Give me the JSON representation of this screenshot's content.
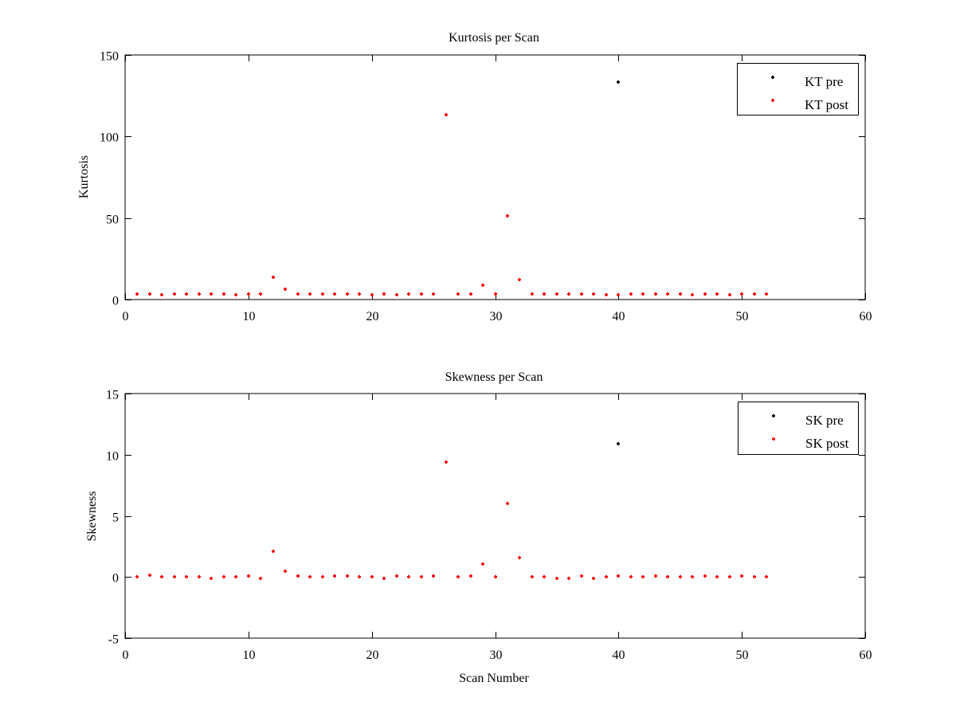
{
  "chart_data": [
    {
      "type": "scatter",
      "title": "Kurtosis per Scan",
      "xlabel": "",
      "ylabel": "Kurtosis",
      "xlim": [
        0,
        60
      ],
      "ylim": [
        0,
        150
      ],
      "xticks": [
        0,
        10,
        20,
        30,
        40,
        50,
        60
      ],
      "yticks": [
        0,
        50,
        100,
        150
      ],
      "grid": false,
      "legend_position": "top-right",
      "series": [
        {
          "name": "KT pre",
          "color": "#000000",
          "x": [
            1,
            2,
            3,
            4,
            5,
            6,
            7,
            8,
            9,
            10,
            11,
            12,
            13,
            14,
            15,
            16,
            17,
            18,
            19,
            20,
            21,
            22,
            23,
            24,
            25,
            26,
            27,
            28,
            29,
            30,
            31,
            32,
            33,
            34,
            35,
            36,
            37,
            38,
            39,
            40,
            41,
            42,
            43,
            44,
            45,
            46,
            47,
            48,
            49,
            50,
            51,
            52
          ],
          "y": [
            3.5,
            3.5,
            3.0,
            3.5,
            3.5,
            3.5,
            3.5,
            3.5,
            3.0,
            3.5,
            3.5,
            13.5,
            6.2,
            3.5,
            3.5,
            3.5,
            3.5,
            3.5,
            3.5,
            3.0,
            3.5,
            3.0,
            3.5,
            3.5,
            3.5,
            113.5,
            3.5,
            3.5,
            8.6,
            3.5,
            51.3,
            12.1,
            3.5,
            3.5,
            3.5,
            3.5,
            3.5,
            3.5,
            3.0,
            133.4,
            3.5,
            3.5,
            3.5,
            3.5,
            3.5,
            3.0,
            3.5,
            3.5,
            3.0,
            3.5,
            3.5,
            3.5
          ]
        },
        {
          "name": "KT post",
          "color": "#ff0000",
          "x": [
            1,
            2,
            3,
            4,
            5,
            6,
            7,
            8,
            9,
            10,
            11,
            12,
            13,
            14,
            15,
            16,
            17,
            18,
            19,
            20,
            21,
            22,
            23,
            24,
            25,
            26,
            27,
            28,
            29,
            30,
            31,
            32,
            33,
            34,
            35,
            36,
            37,
            38,
            39,
            40,
            41,
            42,
            43,
            44,
            45,
            46,
            47,
            48,
            49,
            50,
            51,
            52
          ],
          "y": [
            3.5,
            3.5,
            3.0,
            3.5,
            3.5,
            3.5,
            3.5,
            3.5,
            3.0,
            3.5,
            3.5,
            13.5,
            6.2,
            3.5,
            3.5,
            3.5,
            3.5,
            3.5,
            3.5,
            3.0,
            3.5,
            3.0,
            3.5,
            3.5,
            3.5,
            113.5,
            3.5,
            3.5,
            8.6,
            3.5,
            51.3,
            12.1,
            3.5,
            3.5,
            3.5,
            3.5,
            3.5,
            3.5,
            3.0,
            3.0,
            3.5,
            3.5,
            3.5,
            3.5,
            3.5,
            3.0,
            3.5,
            3.5,
            3.0,
            3.5,
            3.5,
            3.5
          ]
        }
      ]
    },
    {
      "type": "scatter",
      "title": "Skewness per Scan",
      "xlabel": "Scan Number",
      "ylabel": "Skewness",
      "xlim": [
        0,
        60
      ],
      "ylim": [
        -5,
        15
      ],
      "xticks": [
        0,
        10,
        20,
        30,
        40,
        50,
        60
      ],
      "yticks": [
        -5,
        0,
        5,
        10,
        15
      ],
      "grid": false,
      "legend_position": "top-right",
      "series": [
        {
          "name": "SK pre",
          "color": "#000000",
          "x": [
            1,
            2,
            3,
            4,
            5,
            6,
            7,
            8,
            9,
            10,
            11,
            12,
            13,
            14,
            15,
            16,
            17,
            18,
            19,
            20,
            21,
            22,
            23,
            24,
            25,
            26,
            27,
            28,
            29,
            30,
            31,
            32,
            33,
            34,
            35,
            36,
            37,
            38,
            39,
            40,
            41,
            42,
            43,
            44,
            45,
            46,
            47,
            48,
            49,
            50,
            51,
            52
          ],
          "y": [
            0,
            0.15,
            0,
            0,
            0,
            0,
            -0.1,
            0,
            0,
            0.1,
            -0.1,
            2.1,
            0.5,
            0.1,
            0,
            0,
            0.1,
            0.1,
            0,
            0,
            -0.1,
            0.1,
            0,
            0,
            0.1,
            9.4,
            0,
            0.1,
            1.05,
            0,
            6.0,
            1.55,
            0,
            0,
            -0.1,
            -0.1,
            0.1,
            -0.1,
            0,
            10.9,
            0,
            0,
            0.1,
            0,
            0,
            0,
            0.1,
            0,
            0,
            0.1,
            0,
            0
          ]
        },
        {
          "name": "SK post",
          "color": "#ff0000",
          "x": [
            1,
            2,
            3,
            4,
            5,
            6,
            7,
            8,
            9,
            10,
            11,
            12,
            13,
            14,
            15,
            16,
            17,
            18,
            19,
            20,
            21,
            22,
            23,
            24,
            25,
            26,
            27,
            28,
            29,
            30,
            31,
            32,
            33,
            34,
            35,
            36,
            37,
            38,
            39,
            40,
            41,
            42,
            43,
            44,
            45,
            46,
            47,
            48,
            49,
            50,
            51,
            52
          ],
          "y": [
            0,
            0.15,
            0,
            0,
            0,
            0,
            -0.1,
            0,
            0,
            0.1,
            -0.1,
            2.1,
            0.5,
            0.1,
            0,
            0,
            0.1,
            0.1,
            0,
            0,
            -0.1,
            0.1,
            0,
            0,
            0.1,
            9.4,
            0,
            0.1,
            1.05,
            0,
            6.0,
            1.55,
            0,
            0,
            -0.1,
            -0.1,
            0.1,
            -0.1,
            0,
            0.1,
            0,
            0,
            0.1,
            0,
            0,
            0,
            0.1,
            0,
            0,
            0.1,
            0,
            0
          ]
        }
      ]
    }
  ]
}
